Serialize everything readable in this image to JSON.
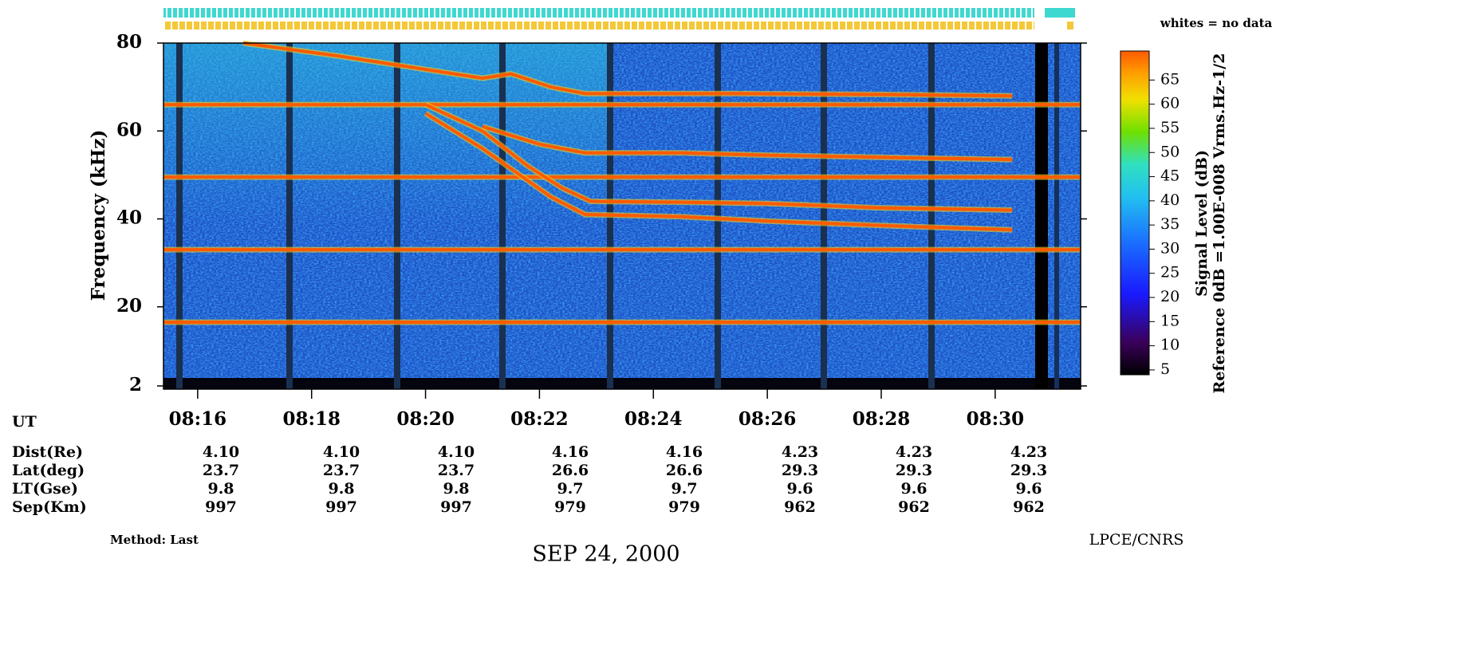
{
  "chart_data": {
    "type": "spectrogram",
    "ylabel": "Frequency (kHz)",
    "ylim": [
      2,
      80
    ],
    "yticks": [
      2,
      20,
      40,
      60,
      80
    ],
    "xlabel": "UT",
    "xlim": [
      495.4,
      511.5
    ],
    "xticks": [
      {
        "value": 496,
        "label": "08:16"
      },
      {
        "value": 498,
        "label": "08:18"
      },
      {
        "value": 500,
        "label": "08:20"
      },
      {
        "value": 502,
        "label": "08:22"
      },
      {
        "value": 504,
        "label": "08:24"
      },
      {
        "value": 506,
        "label": "08:26"
      },
      {
        "value": 508,
        "label": "08:28"
      },
      {
        "value": 510,
        "label": "08:30"
      }
    ],
    "colorbar": {
      "title": "Signal Level (dB)",
      "reference": "Reference 0dB =1.00E-008 Vrms.Hz-1/2",
      "zlim": [
        4,
        71
      ],
      "ticks": [
        5,
        10,
        15,
        20,
        25,
        30,
        35,
        40,
        45,
        50,
        55,
        60,
        65
      ]
    },
    "note": "whites = no data",
    "color": "#ff5a00",
    "series": [
      {
        "x": [
          495.4,
          511.5
        ],
        "values": [
          16.5,
          16.5
        ]
      },
      {
        "x": [
          495.4,
          511.5
        ],
        "values": [
          33,
          33
        ]
      },
      {
        "x": [
          495.4,
          511.5
        ],
        "values": [
          49.5,
          49.5
        ]
      },
      {
        "x": [
          495.4,
          511.5
        ],
        "values": [
          66,
          66
        ]
      },
      {
        "x": [
          496.8,
          498.5,
          500.0,
          501.0,
          501.5,
          502.2,
          502.8,
          504.0,
          505.5,
          508.0,
          510.3
        ],
        "values": [
          80,
          77,
          74,
          72,
          73,
          70,
          68.5,
          68.5,
          68.5,
          68.3,
          68
        ]
      },
      {
        "x": [
          500.0,
          501.0,
          501.8,
          502.4,
          502.9,
          504.5,
          506.0,
          508.0,
          510.3
        ],
        "values": [
          66,
          60,
          52,
          47,
          44,
          43.8,
          43.5,
          42.5,
          42
        ]
      },
      {
        "x": [
          500.0,
          501.0,
          502.2,
          502.8,
          504.5,
          506.0,
          508.0,
          510.3
        ],
        "values": [
          64,
          56,
          45,
          41,
          40.5,
          39.5,
          38.5,
          37.5
        ]
      },
      {
        "x": [
          501.0,
          502.0,
          502.8,
          504.5,
          506.0,
          508.0,
          510.3
        ],
        "values": [
          61,
          57,
          55,
          55,
          54.5,
          54,
          53.5
        ]
      }
    ]
  },
  "ephemeris": {
    "row_labels": [
      "Dist(Re)",
      "Lat(deg)",
      "LT(Gse)",
      "Sep(Km)"
    ],
    "rows": [
      [
        "4.10",
        "4.10",
        "4.10",
        "4.16",
        "4.16",
        "4.23",
        "4.23",
        "4.23"
      ],
      [
        "23.7",
        "23.7",
        "23.7",
        "26.6",
        "26.6",
        "29.3",
        "29.3",
        "29.3"
      ],
      [
        "9.8",
        "9.8",
        "9.8",
        "9.7",
        "9.7",
        "9.6",
        "9.6",
        "9.6"
      ],
      [
        "997",
        "997",
        "997",
        "979",
        "979",
        "962",
        "962",
        "962"
      ]
    ]
  },
  "footer": {
    "method": "Method: Last",
    "date": "SEP 24, 2000",
    "credit": "LPCE/CNRS"
  }
}
